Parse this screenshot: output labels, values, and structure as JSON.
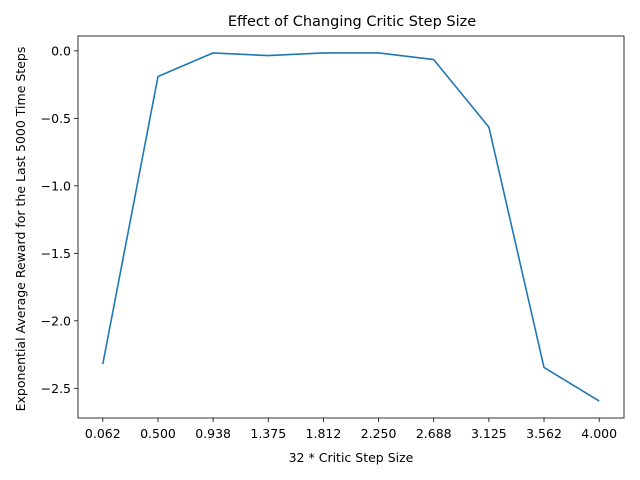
{
  "chart_data": {
    "type": "line",
    "title": "Effect of Changing Critic Step Size",
    "xlabel": "32 * Critic Step Size",
    "ylabel": "Exponential Average Reward for the Last 5000 Time Steps",
    "x_tick_labels": [
      "0.062",
      "0.500",
      "0.938",
      "1.375",
      "1.812",
      "2.250",
      "2.688",
      "3.125",
      "3.562",
      "4.000"
    ],
    "y_ticks": [
      0.0,
      -0.5,
      -1.0,
      -1.5,
      -2.0,
      -2.5
    ],
    "y_tick_labels": [
      "0.0",
      "−0.5",
      "−1.0",
      "−1.5",
      "−2.0",
      "−2.5"
    ],
    "ylim": [
      -2.72,
      0.11
    ],
    "grid": false,
    "series": [
      {
        "color": "#1f77b4",
        "x": [
          0.0625,
          0.5,
          0.9375,
          1.375,
          1.8125,
          2.25,
          2.6875,
          3.125,
          3.5625,
          4.0
        ],
        "values": [
          -2.32,
          -0.19,
          -0.015,
          -0.035,
          -0.015,
          -0.015,
          -0.065,
          -0.565,
          -2.345,
          -2.595
        ]
      }
    ]
  }
}
